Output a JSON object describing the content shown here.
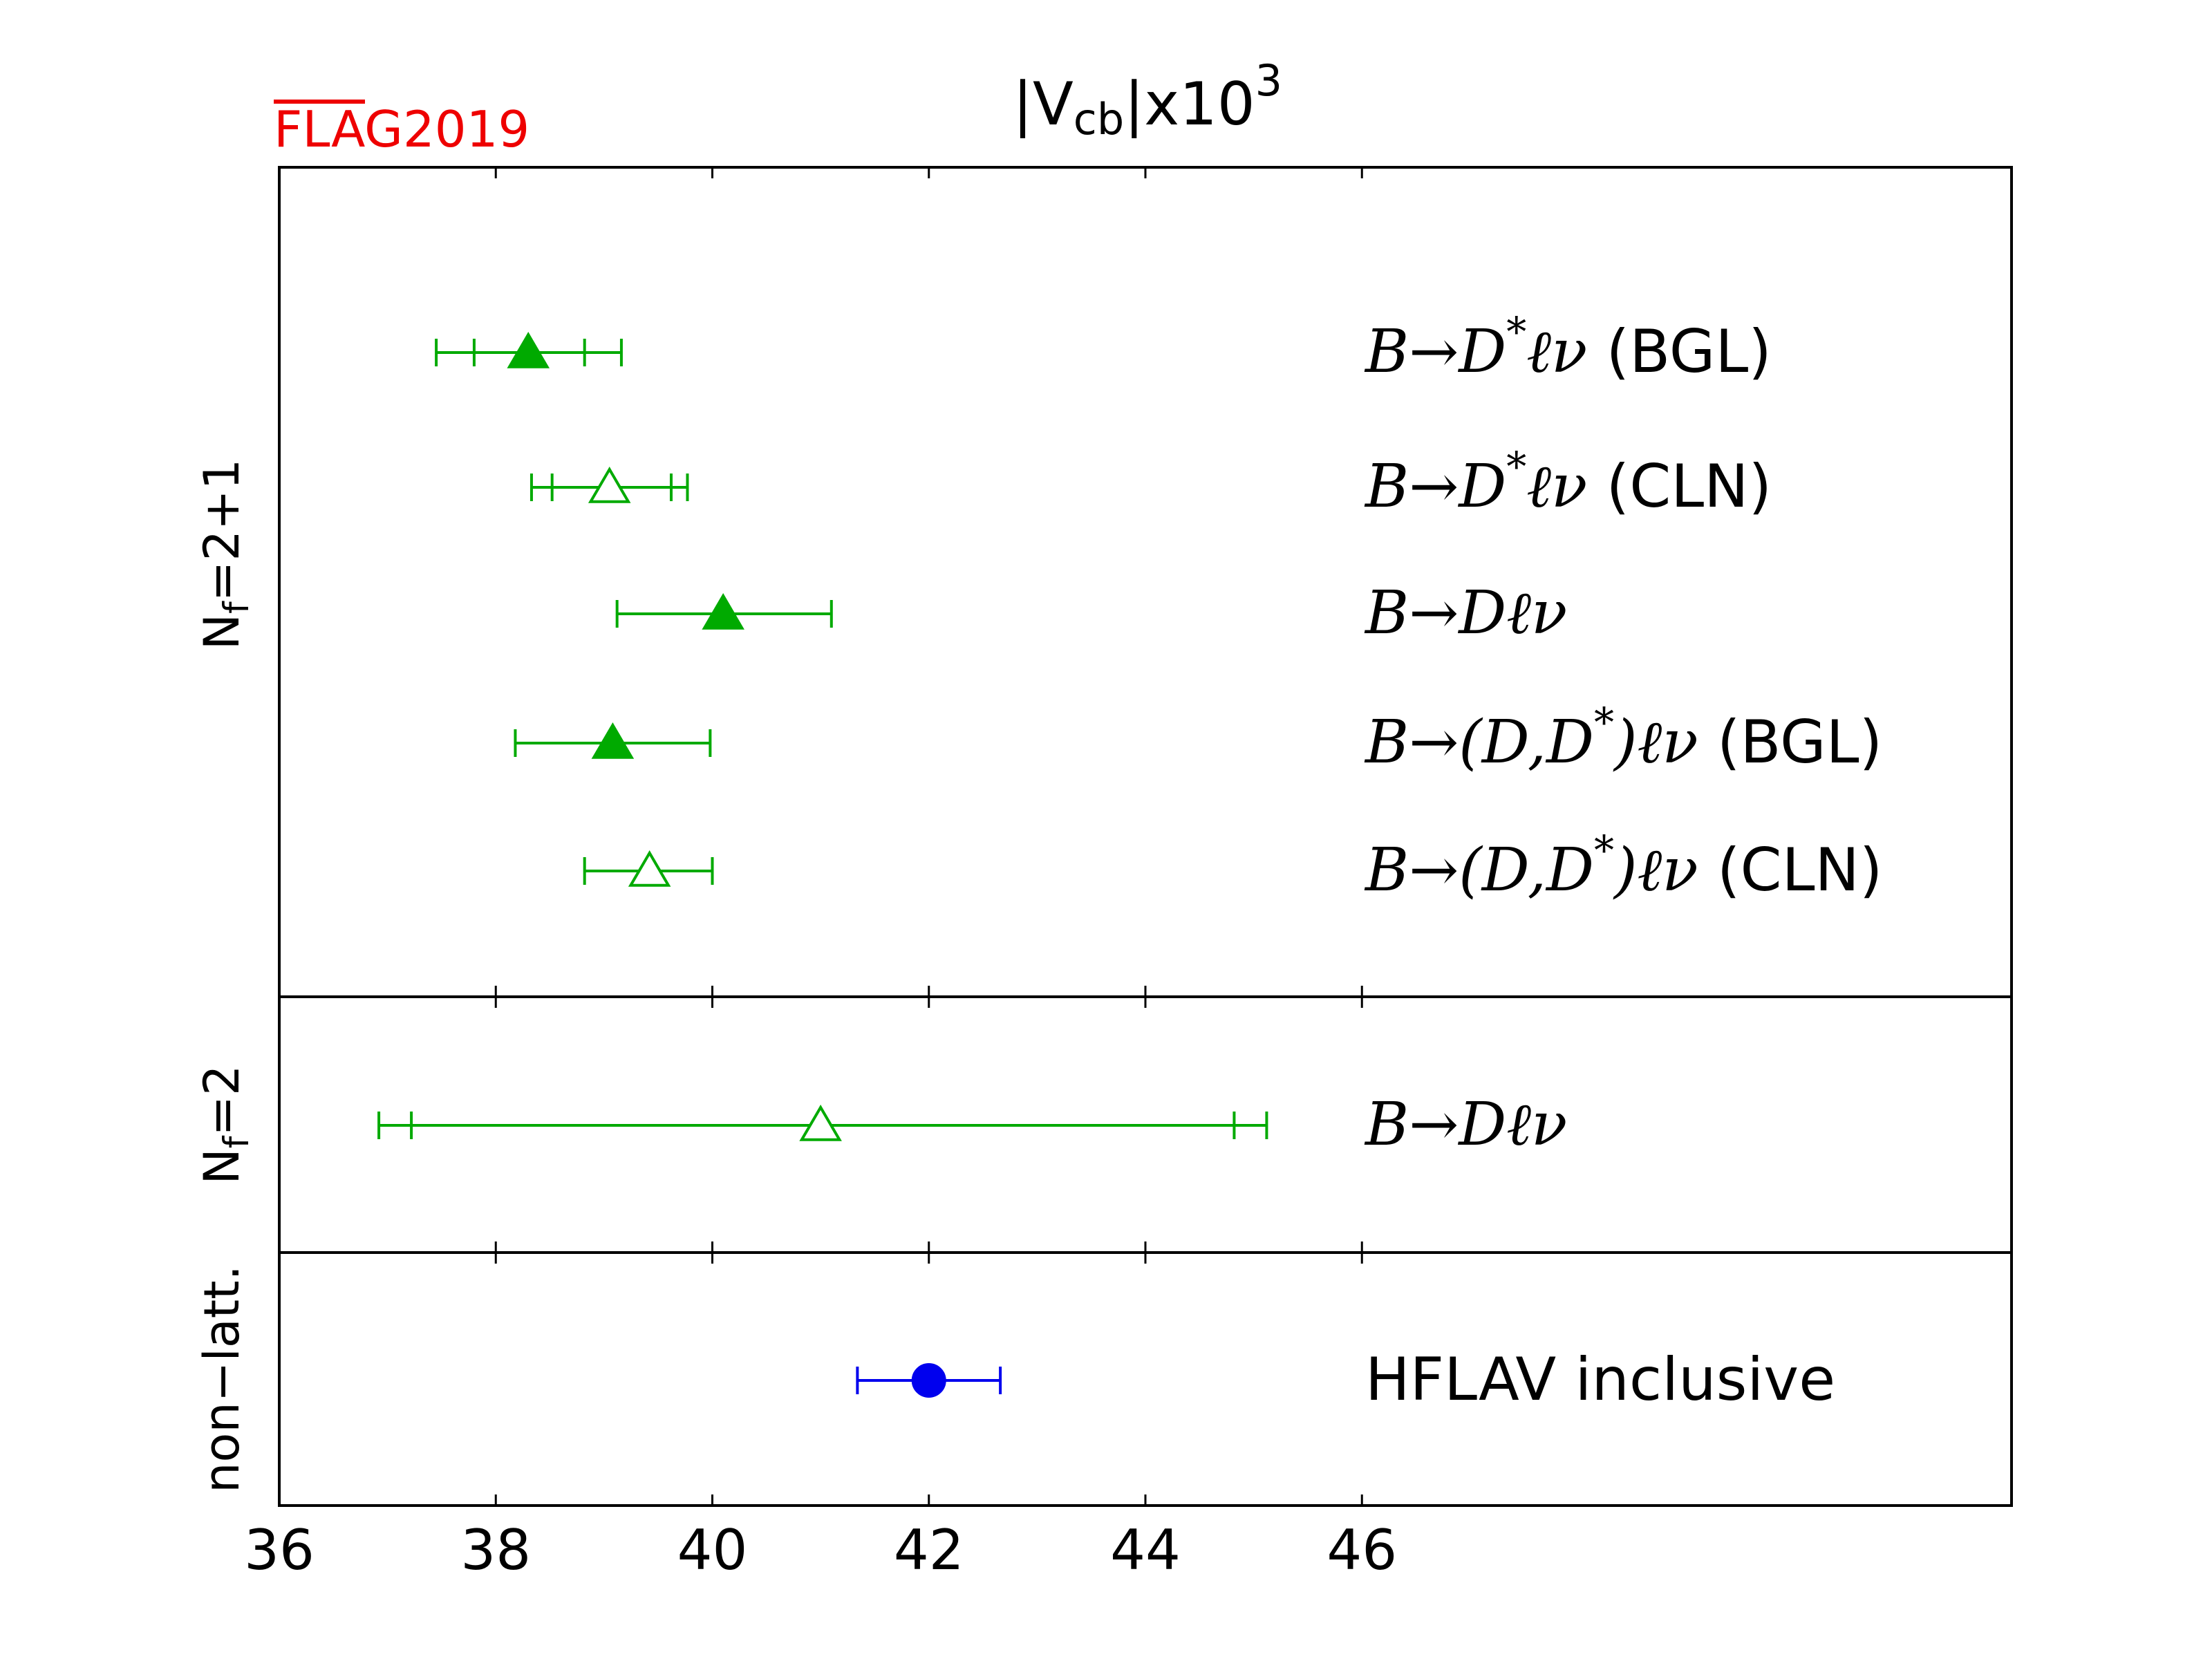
{
  "chart_data": {
    "type": "scatter",
    "title": "|V",
    "title_sub": "cb",
    "title_tail": "|x10",
    "title_sup": "3",
    "logo": "FLAG",
    "logo_year": "2019",
    "xlim": [
      36,
      52
    ],
    "x_ticks": [
      "36",
      "38",
      "40",
      "42",
      "44",
      "46"
    ],
    "x_tick_values": [
      36,
      38,
      40,
      42,
      44,
      46
    ],
    "groups": [
      {
        "name": "N",
        "name_sub": "f",
        "name_tail": "=2+1"
      },
      {
        "name": "N",
        "name_sub": "f",
        "name_tail": "=2"
      },
      {
        "name": "non−latt.",
        "name_sub": "",
        "name_tail": ""
      }
    ],
    "points": [
      {
        "group": 0,
        "label_math": "B→D",
        "label_sup": "*",
        "label_math2": "ℓν",
        "label_text": " (BGL)",
        "value": 38.3,
        "inner": [
          37.8,
          38.82
        ],
        "outer": [
          37.45,
          39.16
        ],
        "marker": "triangle",
        "filled": true,
        "color": "#00aa00"
      },
      {
        "group": 0,
        "label_math": "B→D",
        "label_sup": "*",
        "label_math2": "ℓν",
        "label_text": " (CLN)",
        "value": 39.05,
        "inner": [
          38.52,
          39.62
        ],
        "outer": [
          38.33,
          39.77
        ],
        "marker": "triangle",
        "filled": false,
        "color": "#00aa00"
      },
      {
        "group": 0,
        "label_math": "B→Dℓν",
        "label_sup": "",
        "label_math2": "",
        "label_text": "",
        "value": 40.1,
        "inner": [
          39.12,
          41.1
        ],
        "outer": [
          39.12,
          41.1
        ],
        "marker": "triangle",
        "filled": true,
        "color": "#00aa00"
      },
      {
        "group": 0,
        "label_math": "B→(D,D",
        "label_sup": "*",
        "label_math2": ")ℓν",
        "label_text": " (BGL)",
        "value": 39.08,
        "inner": [
          38.18,
          39.98
        ],
        "outer": [
          38.18,
          39.98
        ],
        "marker": "triangle",
        "filled": true,
        "color": "#00aa00"
      },
      {
        "group": 0,
        "label_math": "B→(D,D",
        "label_sup": "*",
        "label_math2": ")ℓν",
        "label_text": " (CLN)",
        "value": 39.42,
        "inner": [
          38.82,
          40.0
        ],
        "outer": [
          38.82,
          40.0
        ],
        "marker": "triangle",
        "filled": false,
        "color": "#00aa00"
      },
      {
        "group": 1,
        "label_math": "B→Dℓν",
        "label_sup": "",
        "label_math2": "",
        "label_text": "",
        "value": 41.0,
        "inner": [
          37.22,
          44.82
        ],
        "outer": [
          36.92,
          45.12
        ],
        "marker": "triangle",
        "filled": false,
        "color": "#00aa00"
      },
      {
        "group": 2,
        "label_math": "",
        "label_sup": "",
        "label_math2": "",
        "label_text": "HFLAV inclusive",
        "value": 42.0,
        "inner": [
          41.34,
          42.66
        ],
        "outer": [
          41.34,
          42.66
        ],
        "marker": "circle",
        "filled": true,
        "color": "#0000ee"
      }
    ],
    "colors": {
      "logo": "#ee0000",
      "lattice": "#00aa00",
      "nonlattice": "#0000ee"
    },
    "grid": false,
    "legend": "none"
  }
}
